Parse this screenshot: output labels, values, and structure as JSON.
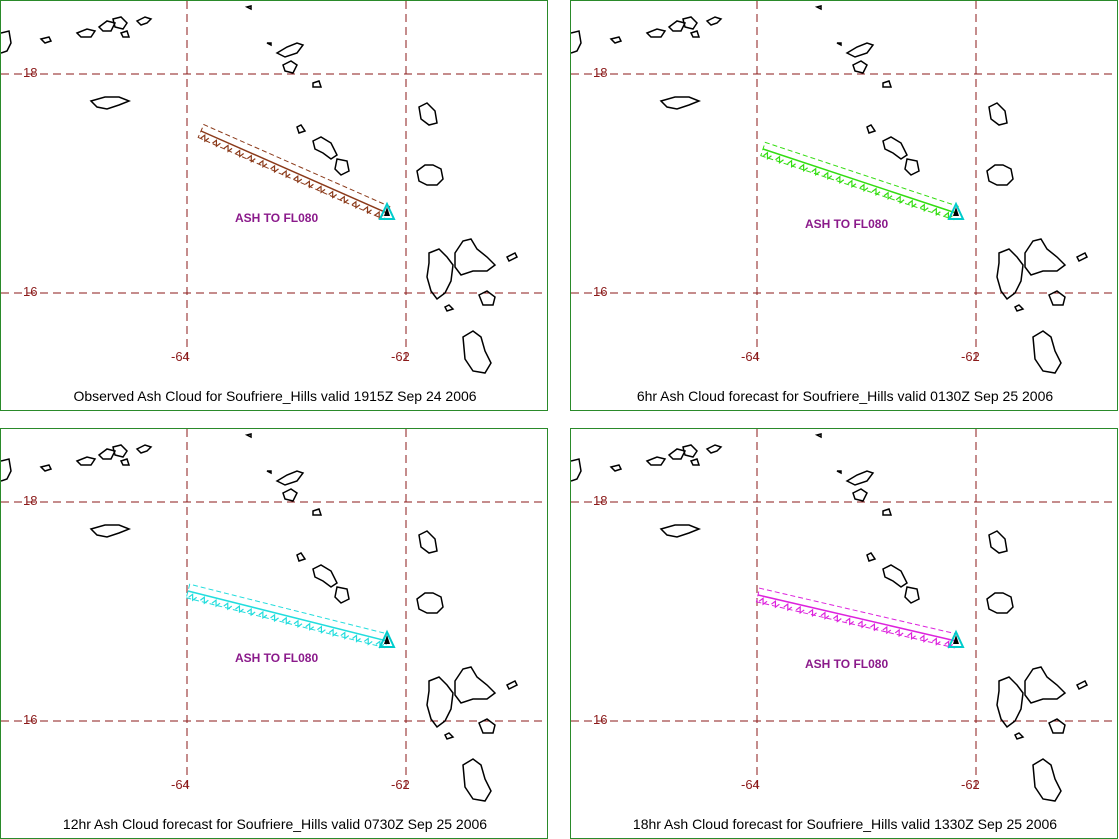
{
  "grid": {
    "lat_labels": [
      "18",
      "16"
    ],
    "lon_labels": [
      "-64",
      "-62"
    ],
    "grid_color": "#8b1a1a"
  },
  "ash_label": "ASH TO FL080",
  "ash_label_color": "#8b1a8b",
  "volcano_marker_color": "#00cccc",
  "panels": [
    {
      "caption": "Observed Ash Cloud for Soufriere_Hills valid 1915Z Sep 24 2006",
      "cloud_color": "#8b3a1a"
    },
    {
      "caption": "6hr Ash Cloud forecast for Soufriere_Hills valid 0130Z Sep 25 2006",
      "cloud_color": "#33dd11"
    },
    {
      "caption": "12hr Ash Cloud forecast for Soufriere_Hills valid 0730Z Sep 25 2006",
      "cloud_color": "#22dddd"
    },
    {
      "caption": "18hr Ash Cloud forecast for Soufriere_Hills valid 1330Z Sep 25 2006",
      "cloud_color": "#dd22dd"
    }
  ]
}
